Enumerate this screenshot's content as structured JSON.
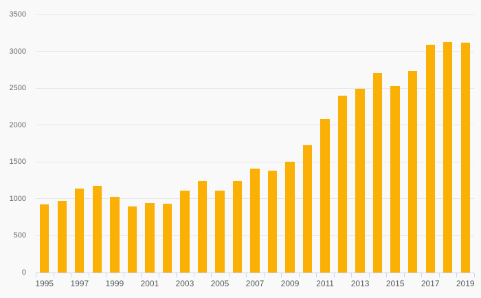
{
  "chart_data": {
    "type": "bar",
    "title": "",
    "xlabel": "",
    "ylabel": "",
    "categories": [
      "1995",
      "1996",
      "1997",
      "1998",
      "1999",
      "2000",
      "2001",
      "2002",
      "2003",
      "2004",
      "2005",
      "2006",
      "2007",
      "2008",
      "2009",
      "2010",
      "2011",
      "2012",
      "2013",
      "2014",
      "2015",
      "2016",
      "2017",
      "2018",
      "2019"
    ],
    "values": [
      925,
      975,
      1135,
      1175,
      1030,
      900,
      940,
      930,
      1110,
      1245,
      1115,
      1240,
      1405,
      1385,
      1505,
      1725,
      2085,
      2400,
      2490,
      2710,
      2525,
      2735,
      3090,
      3130,
      3120
    ],
    "ylim": [
      0,
      3500
    ],
    "y_tick_interval": 500,
    "y_tick_labels": [
      "0",
      "500",
      "1000",
      "1500",
      "2000",
      "2500",
      "3000",
      "3500"
    ],
    "x_tick_labels_shown": [
      "1995",
      "1997",
      "1999",
      "2001",
      "2003",
      "2005",
      "2007",
      "2009",
      "2011",
      "2013",
      "2015",
      "2017",
      "2019"
    ],
    "x_label_every": 2,
    "grid": "horizontal",
    "legend_position": "none",
    "colors": {
      "bar": "#FAB005",
      "background": "#F9F9F9",
      "gridline": "#E7E7E7",
      "axis_line": "#CCD6EB",
      "y_label": "#666666",
      "x_label": "#54575B"
    }
  }
}
